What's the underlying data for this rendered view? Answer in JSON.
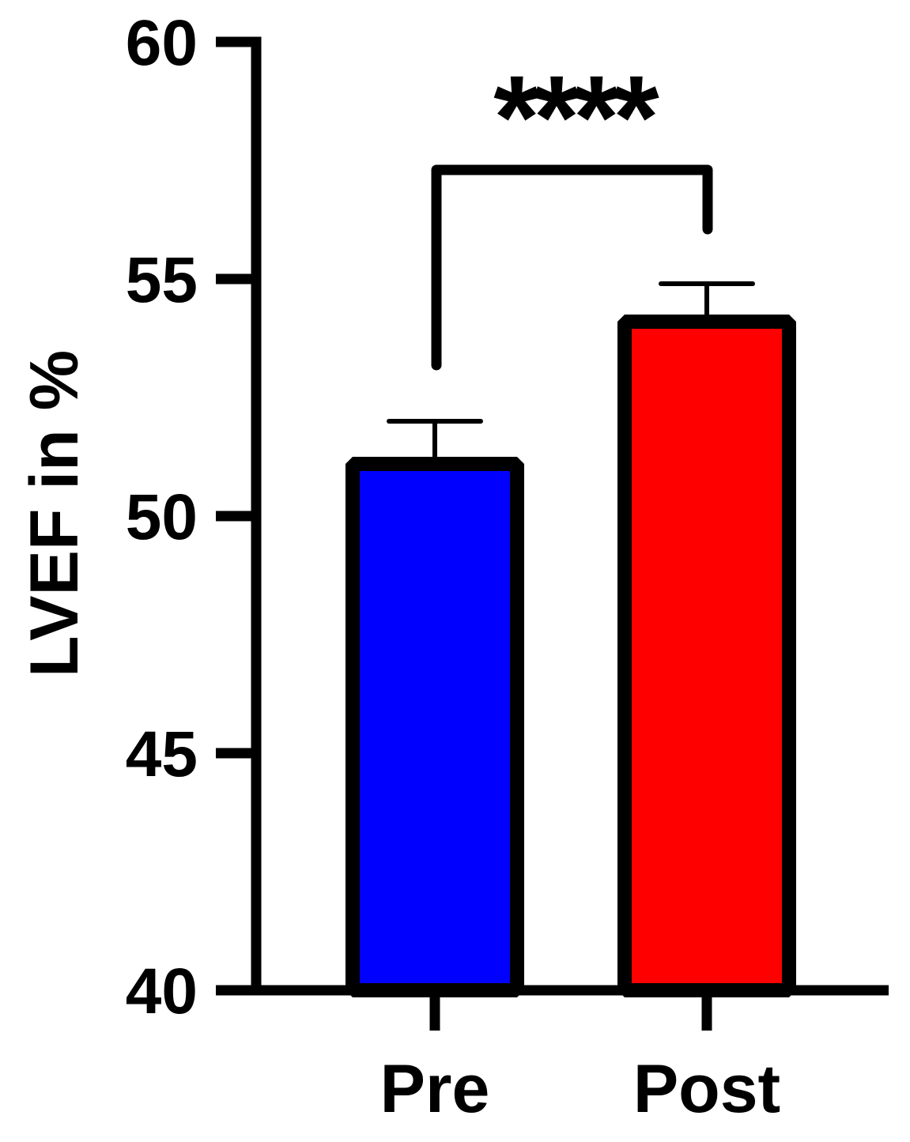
{
  "chart_data": {
    "type": "bar",
    "title": "",
    "xlabel": "",
    "ylabel": "LVEF in %",
    "categories": [
      "Pre",
      "Post"
    ],
    "values": [
      51.1,
      54.1
    ],
    "error_upper": [
      52.0,
      54.9
    ],
    "error_sem": [
      0.9,
      0.8
    ],
    "bar_colors": [
      "#0000ff",
      "#ff0000"
    ],
    "outline_color": "#000000",
    "ylim": [
      40,
      60
    ],
    "yticks": [
      40,
      45,
      50,
      55,
      60
    ],
    "ytick_labels": [
      "40",
      "45",
      "50",
      "55",
      "60"
    ],
    "grid": false,
    "legend": null,
    "annotations": [
      {
        "type": "significance-bracket",
        "between": [
          "Pre",
          "Post"
        ],
        "label": "****",
        "y": 57.3
      }
    ]
  }
}
